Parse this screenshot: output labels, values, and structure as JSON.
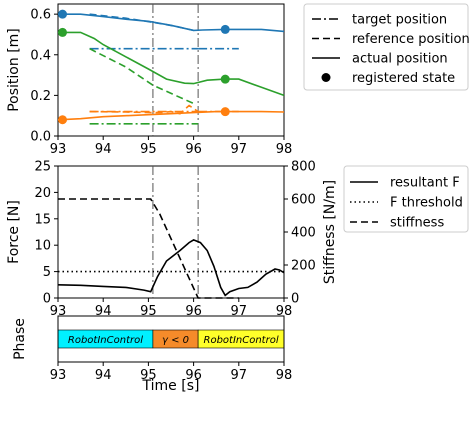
{
  "chart_data": [
    {
      "type": "line",
      "ylabel": "Position [m]",
      "xlim": [
        93,
        98
      ],
      "ylim": [
        0.0,
        0.65
      ],
      "xticks": [
        "93",
        "94",
        "95",
        "96",
        "97",
        "98"
      ],
      "yticks": [
        {
          "v": 0.0,
          "label": "0.0"
        },
        {
          "v": 0.2,
          "label": "0.2"
        },
        {
          "v": 0.4,
          "label": "0.4"
        },
        {
          "v": 0.6,
          "label": "0.6"
        }
      ],
      "vlines": [
        95.1,
        96.1
      ],
      "legend": {
        "placement": "right",
        "entries": [
          {
            "label": "target position",
            "style": "dashdot"
          },
          {
            "label": "reference position",
            "style": "dashed"
          },
          {
            "label": "actual position",
            "style": "solid"
          },
          {
            "label": "registered state",
            "style": "dot"
          }
        ]
      },
      "series": [
        {
          "color": "#1f77b4",
          "actual": [
            [
              93,
              0.6
            ],
            [
              93.5,
              0.6
            ],
            [
              94,
              0.588
            ],
            [
              94.5,
              0.575
            ],
            [
              95,
              0.565
            ],
            [
              95.5,
              0.545
            ],
            [
              96,
              0.52
            ],
            [
              96.2,
              0.522
            ],
            [
              96.7,
              0.525
            ],
            [
              97,
              0.525
            ],
            [
              97.5,
              0.525
            ],
            [
              98,
              0.515
            ]
          ],
          "reference": [
            [
              93.7,
              0.6
            ],
            [
              94.5,
              0.58
            ],
            [
              95.1,
              0.56
            ],
            [
              95.6,
              0.54
            ],
            [
              96,
              0.52
            ]
          ],
          "target": [
            [
              93.7,
              0.43
            ],
            [
              96.1,
              0.43
            ]
          ],
          "target_after": [
            [
              96.1,
              0.43
            ],
            [
              97.0,
              0.43
            ]
          ],
          "registered": [
            [
              93.1,
              0.6
            ],
            [
              96.7,
              0.525
            ]
          ]
        },
        {
          "color": "#2ca02c",
          "actual": [
            [
              93,
              0.51
            ],
            [
              93.5,
              0.51
            ],
            [
              93.8,
              0.48
            ],
            [
              94,
              0.45
            ],
            [
              94.5,
              0.39
            ],
            [
              95,
              0.33
            ],
            [
              95.4,
              0.28
            ],
            [
              95.8,
              0.26
            ],
            [
              96,
              0.258
            ],
            [
              96.3,
              0.275
            ],
            [
              96.7,
              0.28
            ],
            [
              97,
              0.28
            ],
            [
              97.5,
              0.24
            ],
            [
              98,
              0.2
            ]
          ],
          "reference": [
            [
              93.7,
              0.43
            ],
            [
              94.5,
              0.34
            ],
            [
              95.1,
              0.25
            ],
            [
              95.6,
              0.2
            ],
            [
              96,
              0.16
            ]
          ],
          "target": [
            [
              93.7,
              0.06
            ],
            [
              96.1,
              0.06
            ]
          ],
          "registered": [
            [
              93.1,
              0.51
            ],
            [
              96.7,
              0.28
            ]
          ]
        },
        {
          "color": "#ff7f0e",
          "actual": [
            [
              93,
              0.08
            ],
            [
              93.5,
              0.085
            ],
            [
              94,
              0.095
            ],
            [
              94.5,
              0.1
            ],
            [
              95,
              0.105
            ],
            [
              95.5,
              0.11
            ],
            [
              96,
              0.115
            ],
            [
              96.5,
              0.12
            ],
            [
              97,
              0.12
            ],
            [
              97.5,
              0.12
            ],
            [
              98,
              0.118
            ]
          ],
          "reference": [
            [
              93.7,
              0.12
            ],
            [
              94.5,
              0.118
            ],
            [
              95.1,
              0.115
            ],
            [
              95.3,
              0.115
            ],
            [
              95.5,
              0.12
            ],
            [
              95.7,
              0.11
            ],
            [
              95.9,
              0.15
            ],
            [
              96.1,
              0.12
            ]
          ],
          "target": [
            [
              93.7,
              0.12
            ],
            [
              96.1,
              0.12
            ]
          ],
          "target_after": [
            [
              96.1,
              0.12
            ],
            [
              97.0,
              0.12
            ]
          ],
          "registered": [
            [
              93.1,
              0.08
            ],
            [
              96.7,
              0.12
            ]
          ]
        }
      ]
    },
    {
      "type": "line",
      "ylabel": "Force [N]",
      "y2label": "Stiffness [N/m]",
      "xlim": [
        93,
        98
      ],
      "ylim": [
        0,
        25
      ],
      "y2lim": [
        0,
        800
      ],
      "xticks": [
        "93",
        "94",
        "95",
        "96",
        "97",
        "98"
      ],
      "yticks": [
        {
          "v": 0,
          "label": "0"
        },
        {
          "v": 5,
          "label": "5"
        },
        {
          "v": 10,
          "label": "10"
        },
        {
          "v": 15,
          "label": "15"
        },
        {
          "v": 20,
          "label": "20"
        },
        {
          "v": 25,
          "label": "25"
        }
      ],
      "y2ticks": [
        {
          "v": 0,
          "label": "0"
        },
        {
          "v": 200,
          "label": "200"
        },
        {
          "v": 400,
          "label": "400"
        },
        {
          "v": 600,
          "label": "600"
        },
        {
          "v": 800,
          "label": "800"
        }
      ],
      "vlines": [
        95.1,
        96.1
      ],
      "legend": {
        "placement": "right",
        "entries": [
          {
            "label": "resultant F",
            "style": "solid"
          },
          {
            "label": "F threshold",
            "style": "dotted"
          },
          {
            "label": "stiffness",
            "style": "dashed"
          }
        ]
      },
      "resultant_force": [
        [
          93,
          2.5
        ],
        [
          93.5,
          2.4
        ],
        [
          94,
          2.2
        ],
        [
          94.5,
          2.0
        ],
        [
          94.9,
          1.5
        ],
        [
          95.05,
          1.2
        ],
        [
          95.2,
          4
        ],
        [
          95.4,
          7
        ],
        [
          95.7,
          9
        ],
        [
          95.9,
          10.5
        ],
        [
          96.0,
          11
        ],
        [
          96.15,
          10.5
        ],
        [
          96.3,
          9
        ],
        [
          96.45,
          6
        ],
        [
          96.6,
          2
        ],
        [
          96.7,
          0.5
        ],
        [
          96.8,
          1.2
        ],
        [
          97,
          1.8
        ],
        [
          97.2,
          2
        ],
        [
          97.4,
          3
        ],
        [
          97.6,
          4.5
        ],
        [
          97.8,
          5.5
        ],
        [
          97.9,
          5.3
        ],
        [
          98,
          4.8
        ]
      ],
      "force_threshold": 5,
      "stiffness": [
        [
          93,
          600
        ],
        [
          95.05,
          600
        ],
        [
          95.25,
          510
        ],
        [
          96.1,
          0
        ],
        [
          97,
          0
        ]
      ]
    },
    {
      "type": "table",
      "ylabel": "Phase",
      "xlabel": "Time [s]",
      "xlim": [
        93,
        98
      ],
      "xticks": [
        "93",
        "94",
        "95",
        "96",
        "97",
        "98"
      ],
      "segments": [
        {
          "start": 93,
          "end": 95.1,
          "label": "RobotInControl",
          "color": "#00f0ff"
        },
        {
          "start": 95.1,
          "end": 96.1,
          "label": "γ < 0",
          "color": "#f58b2a"
        },
        {
          "start": 96.1,
          "end": 98,
          "label": "RobotInControl",
          "color": "#ffff2a"
        }
      ]
    }
  ]
}
